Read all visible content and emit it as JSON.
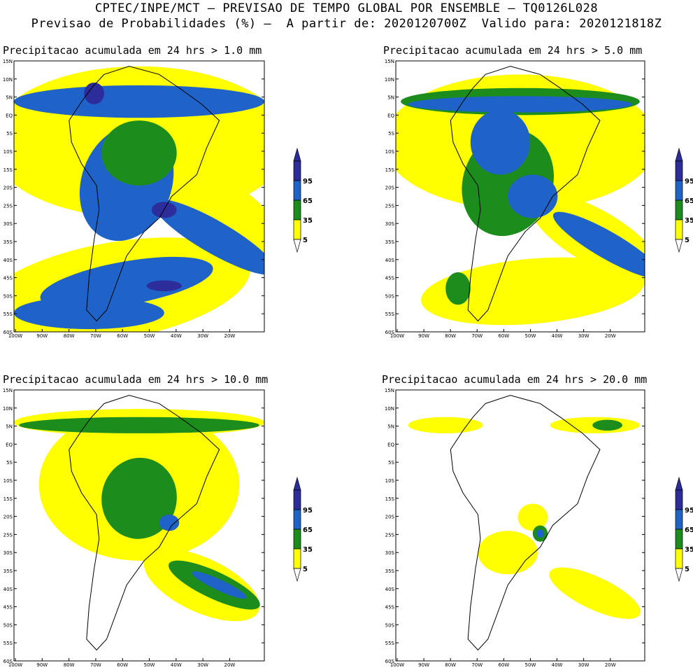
{
  "header": {
    "line1": "CPTEC/INPE/MCT – PREVISAO DE TEMPO GLOBAL POR ENSEMBLE – TQ0126L028",
    "line2": "Previsao de Probabilidades (%) –  A partir de: 2020120700Z  Valido para: 2020121818Z"
  },
  "axes": {
    "lat_labels": [
      "15N",
      "10N",
      "5N",
      "EQ",
      "5S",
      "10S",
      "15S",
      "20S",
      "25S",
      "30S",
      "35S",
      "40S",
      "45S",
      "50S",
      "55S",
      "60S"
    ],
    "lon_labels": [
      "100W",
      "90W",
      "80W",
      "70W",
      "60W",
      "50W",
      "40W",
      "30W",
      "20W"
    ]
  },
  "legend": {
    "levels": [
      "95",
      "65",
      "35",
      "5"
    ],
    "colors": {
      "c95": "#2c2c9a",
      "c65": "#1f63c8",
      "c35": "#1c8c1c",
      "c5": "#ffff00"
    }
  },
  "panels": [
    {
      "title": "Precipitacao acumulada em 24 hrs > 1.0 mm"
    },
    {
      "title": "Precipitacao acumulada em 24 hrs > 5.0 mm"
    },
    {
      "title": "Precipitacao acumulada em 24 hrs > 10.0 mm"
    },
    {
      "title": "Precipitacao acumulada em 24 hrs > 20.0 mm"
    }
  ]
}
